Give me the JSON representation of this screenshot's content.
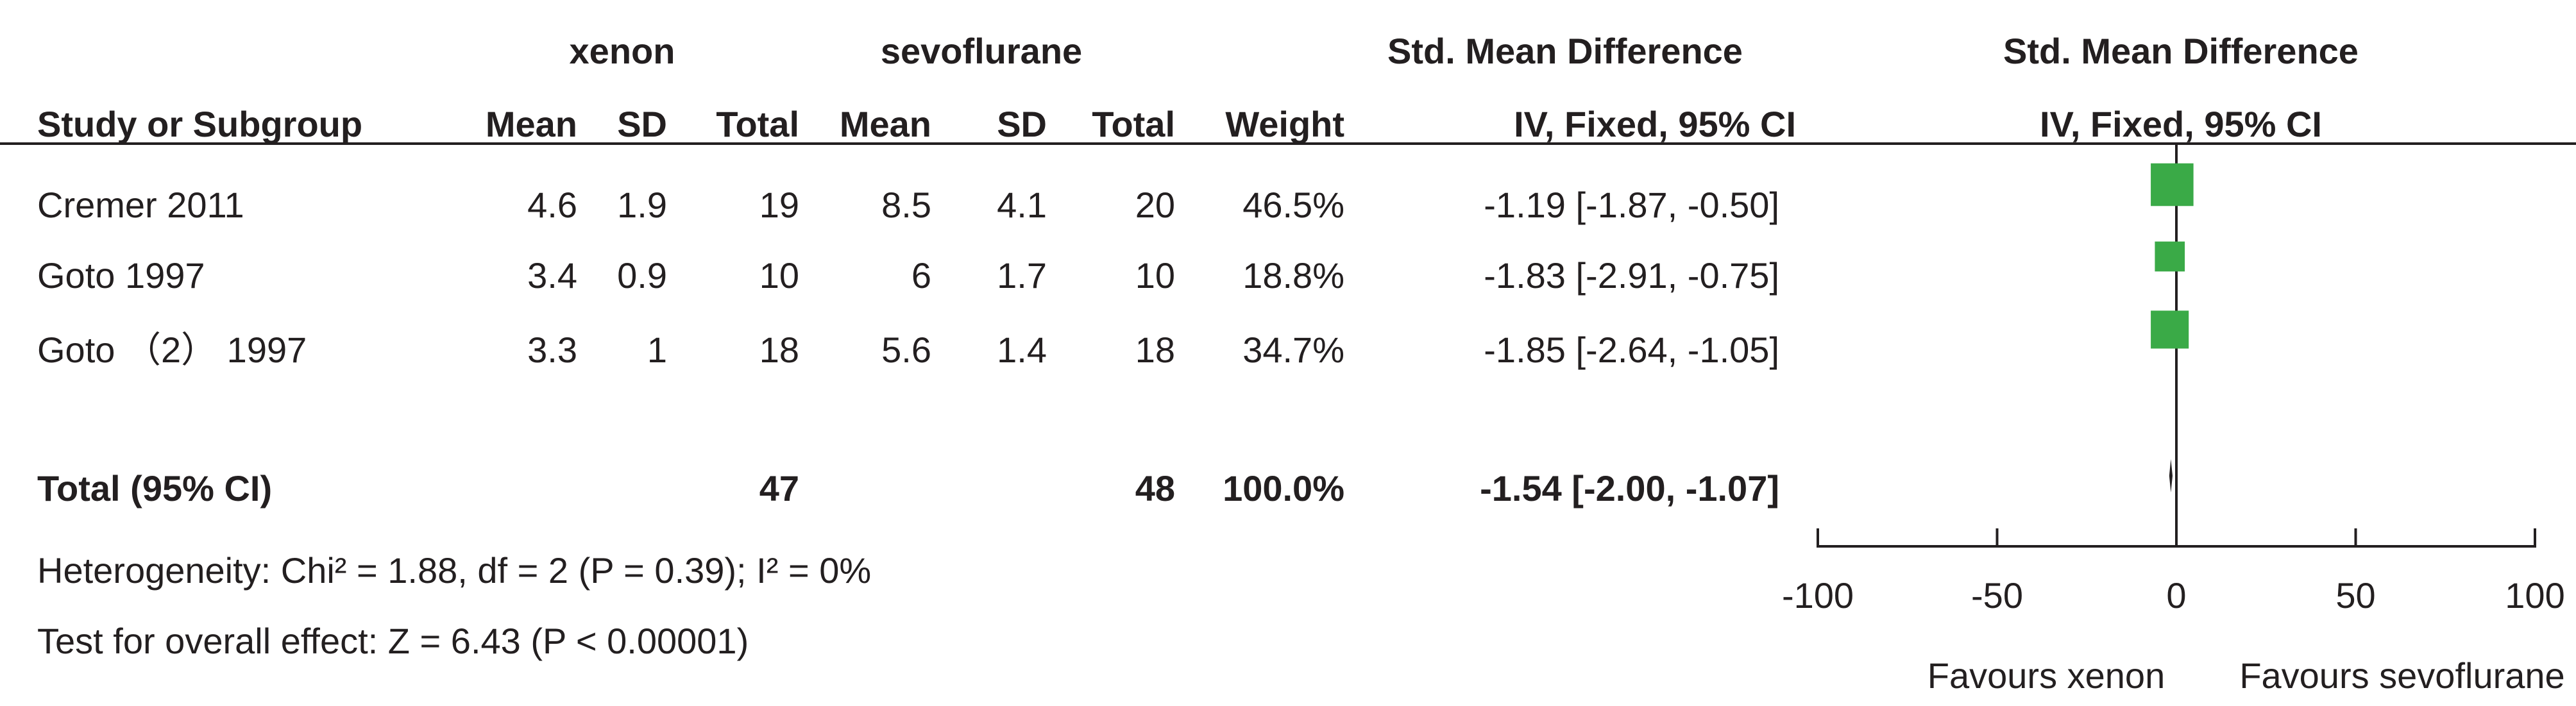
{
  "header": {
    "group1": "xenon",
    "group2": "sevoflurane",
    "effect_title": "Std. Mean Difference",
    "effect_method": "IV, Fixed, 95% CI",
    "plot_title": "Std. Mean Difference",
    "plot_method": "IV, Fixed, 95% CI",
    "study_col": "Study or Subgroup",
    "mean1": "Mean",
    "sd1": "SD",
    "total1": "Total",
    "mean2": "Mean",
    "sd2": "SD",
    "total2": "Total",
    "weight": "Weight"
  },
  "studies": [
    {
      "name": "Cremer 2011",
      "mean1": "4.6",
      "sd1": "1.9",
      "total1": "19",
      "mean2": "8.5",
      "sd2": "4.1",
      "total2": "20",
      "weight": "46.5%",
      "ci_text": "-1.19 [-1.87, -0.50]"
    },
    {
      "name": "Goto 1997",
      "mean1": "3.4",
      "sd1": "0.9",
      "total1": "10",
      "mean2": "6",
      "sd2": "1.7",
      "total2": "10",
      "weight": "18.8%",
      "ci_text": "-1.83 [-2.91, -0.75]"
    },
    {
      "name": "Goto （2） 1997",
      "mean1": "3.3",
      "sd1": "1",
      "total1": "18",
      "mean2": "5.6",
      "sd2": "1.4",
      "total2": "18",
      "weight": "34.7%",
      "ci_text": "-1.85 [-2.64, -1.05]"
    }
  ],
  "total": {
    "label": "Total (95% CI)",
    "total1": "47",
    "total2": "48",
    "weight": "100.0%",
    "ci_text": "-1.54 [-2.00, -1.07]"
  },
  "footer": {
    "heterogeneity": "Heterogeneity: Chi² = 1.88, df = 2 (P = 0.39); I² = 0%",
    "overall": "Test for overall effect: Z = 6.43 (P < 0.00001)"
  },
  "axis": {
    "favours_left": "Favours xenon",
    "favours_right": "Favours sevoflurane"
  },
  "colors": {
    "study_marker": "#3aaa47",
    "text": "#231f20",
    "lines": "#231f20"
  },
  "chart_data": {
    "type": "forest",
    "xlim": [
      -100,
      100
    ],
    "xticks": [
      -100,
      -50,
      0,
      50,
      100
    ],
    "xticklabels": [
      "-100",
      "-50",
      "0",
      "50",
      "100"
    ],
    "null_line": 0,
    "points": [
      {
        "name": "Cremer 2011",
        "est": -1.19,
        "lo": -1.87,
        "hi": -0.5,
        "weight": 46.5
      },
      {
        "name": "Goto 1997",
        "est": -1.83,
        "lo": -2.91,
        "hi": -0.75,
        "weight": 18.8
      },
      {
        "name": "Goto （2） 1997",
        "est": -1.85,
        "lo": -2.64,
        "hi": -1.05,
        "weight": 34.7
      }
    ],
    "summary": {
      "est": -1.54,
      "lo": -2.0,
      "hi": -1.07
    }
  }
}
